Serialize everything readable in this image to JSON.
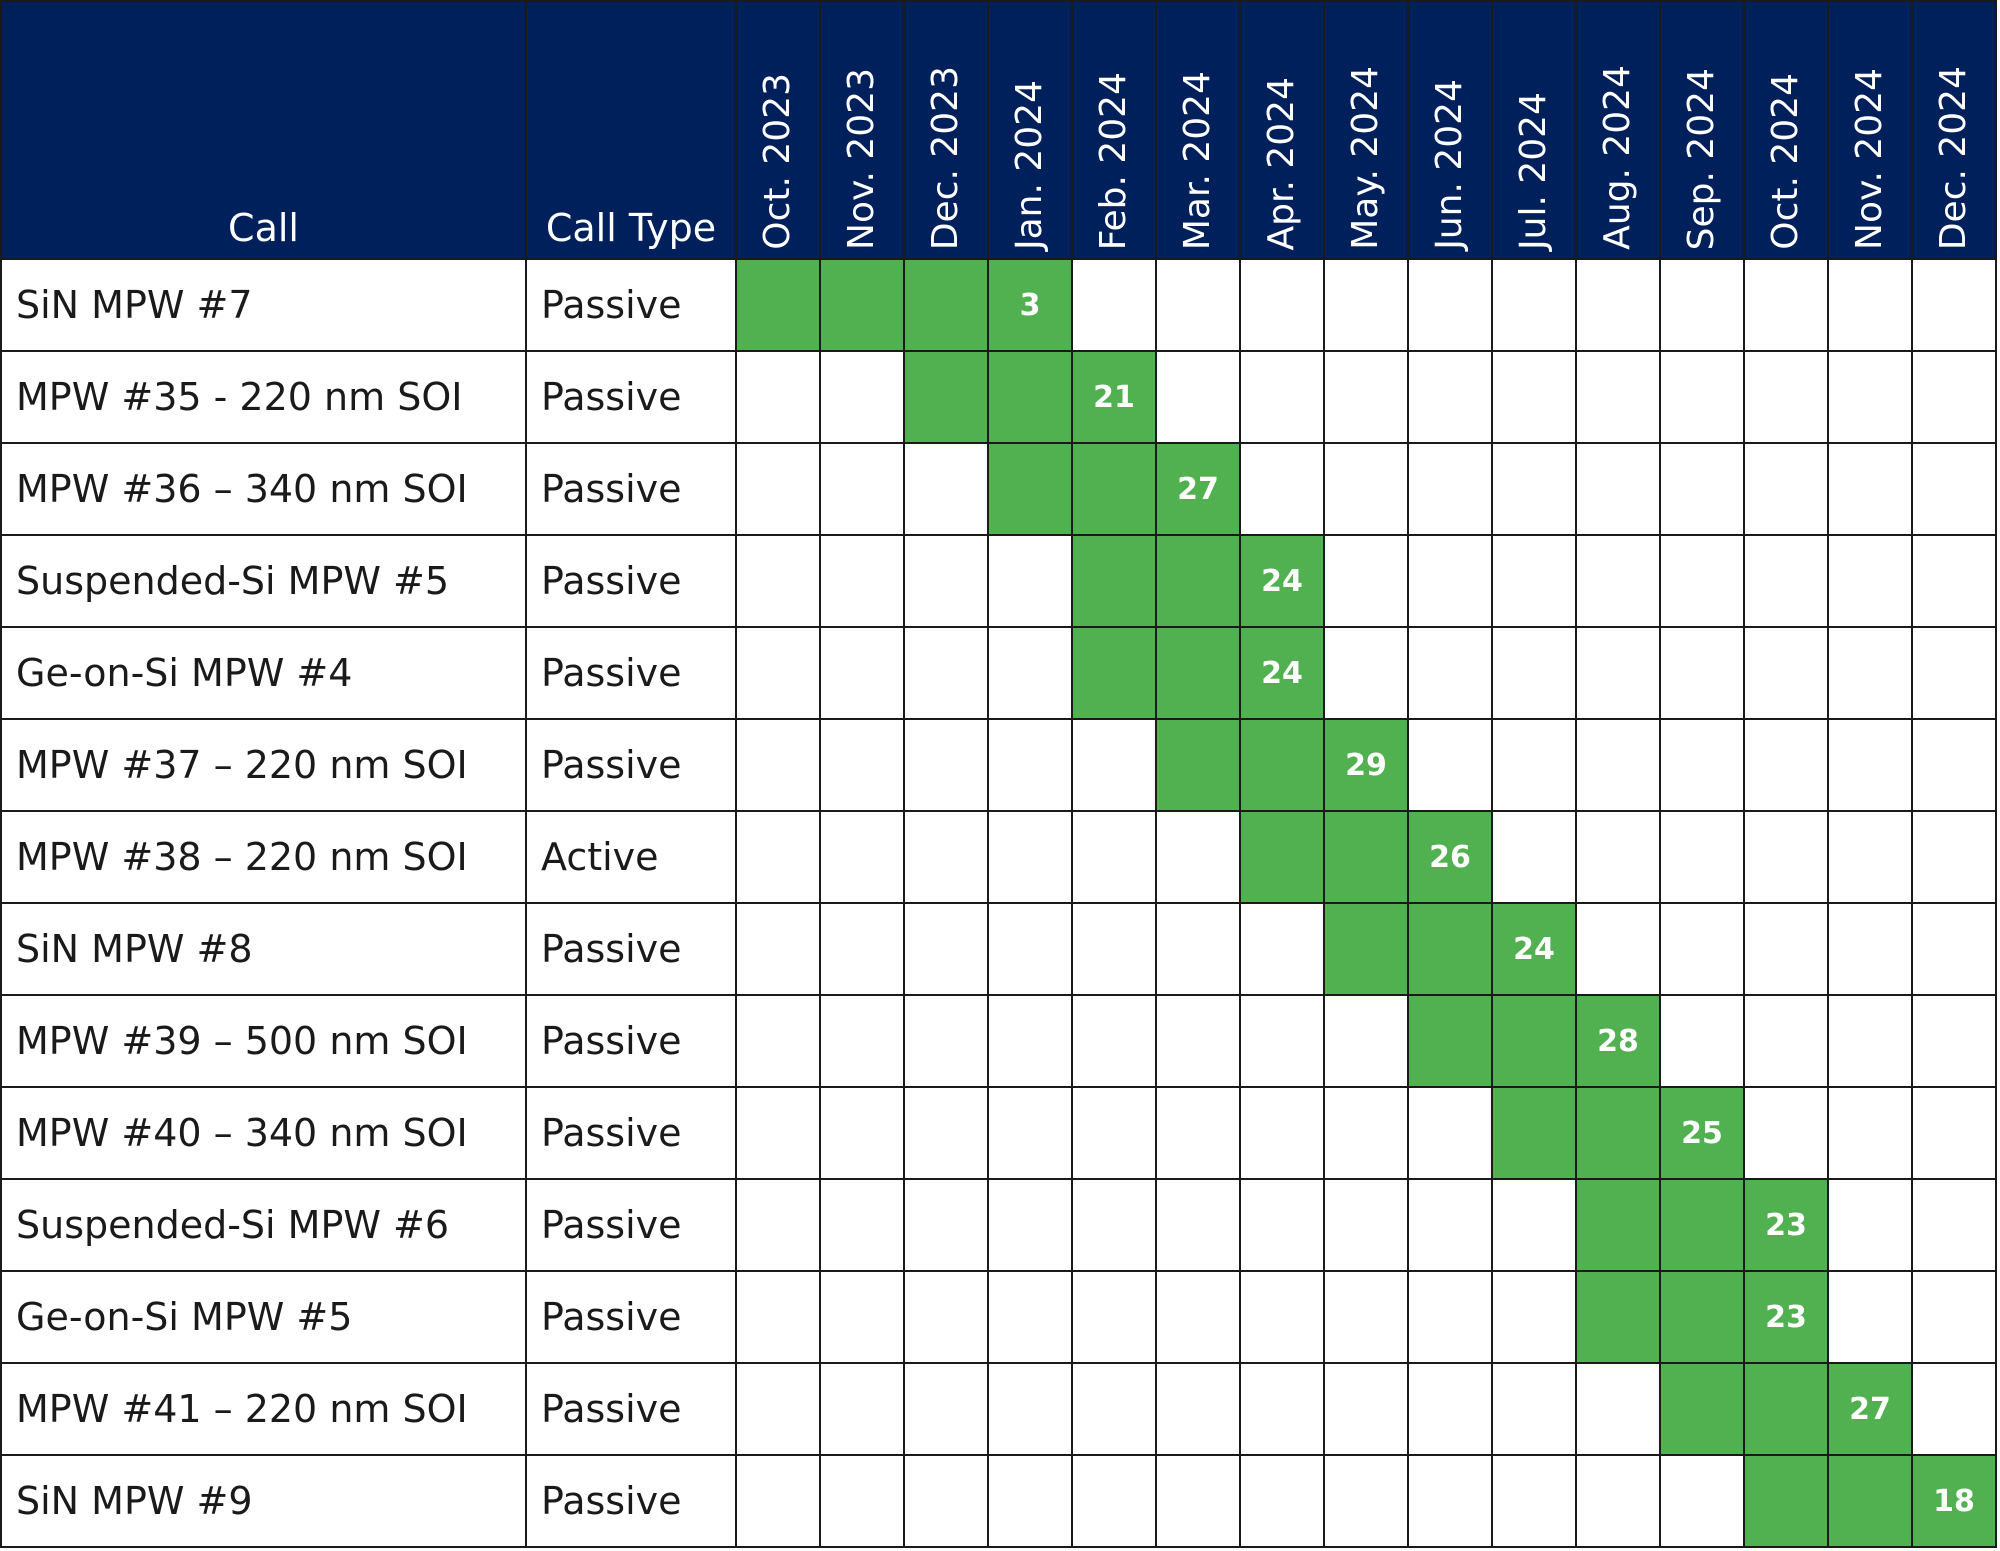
{
  "colors": {
    "header_bg": "#00205b",
    "header_text": "#ffffff",
    "active_cell": "#51b04f",
    "grid_line": "#1a1a1a"
  },
  "headers": {
    "call": "Call",
    "call_type": "Call Type",
    "months": [
      "Oct. 2023",
      "Nov. 2023",
      "Dec. 2023",
      "Jan. 2024",
      "Feb. 2024",
      "Mar. 2024",
      "Apr. 2024",
      "May. 2024",
      "Jun. 2024",
      "Jul. 2024",
      "Aug. 2024",
      "Sep. 2024",
      "Oct. 2024",
      "Nov. 2024",
      "Dec. 2024"
    ]
  },
  "rows": [
    {
      "call": "SiN MPW #7",
      "type": "Passive",
      "start": 0,
      "end": 3,
      "day": "3"
    },
    {
      "call": "MPW #35 - 220 nm SOI",
      "type": "Passive",
      "start": 2,
      "end": 4,
      "day": "21"
    },
    {
      "call": "MPW #36 – 340 nm SOI",
      "type": "Passive",
      "start": 3,
      "end": 5,
      "day": "27"
    },
    {
      "call": "Suspended-Si MPW #5",
      "type": "Passive",
      "start": 4,
      "end": 6,
      "day": "24"
    },
    {
      "call": "Ge-on-Si MPW #4",
      "type": "Passive",
      "start": 4,
      "end": 6,
      "day": "24"
    },
    {
      "call": "MPW #37 – 220 nm SOI",
      "type": "Passive",
      "start": 5,
      "end": 7,
      "day": "29"
    },
    {
      "call": "MPW #38 – 220 nm SOI",
      "type": "Active",
      "start": 6,
      "end": 8,
      "day": "26"
    },
    {
      "call": "SiN MPW #8",
      "type": "Passive",
      "start": 7,
      "end": 9,
      "day": "24"
    },
    {
      "call": "MPW #39 – 500 nm SOI",
      "type": "Passive",
      "start": 8,
      "end": 10,
      "day": "28"
    },
    {
      "call": "MPW #40 – 340 nm SOI",
      "type": "Passive",
      "start": 9,
      "end": 11,
      "day": "25"
    },
    {
      "call": "Suspended-Si MPW #6",
      "type": "Passive",
      "start": 10,
      "end": 12,
      "day": "23"
    },
    {
      "call": "Ge-on-Si MPW #5",
      "type": "Passive",
      "start": 10,
      "end": 12,
      "day": "23"
    },
    {
      "call": "MPW #41 – 220 nm SOI",
      "type": "Passive",
      "start": 11,
      "end": 13,
      "day": "27"
    },
    {
      "call": "SiN MPW #9",
      "type": "Passive",
      "start": 12,
      "end": 14,
      "day": "18"
    }
  ]
}
